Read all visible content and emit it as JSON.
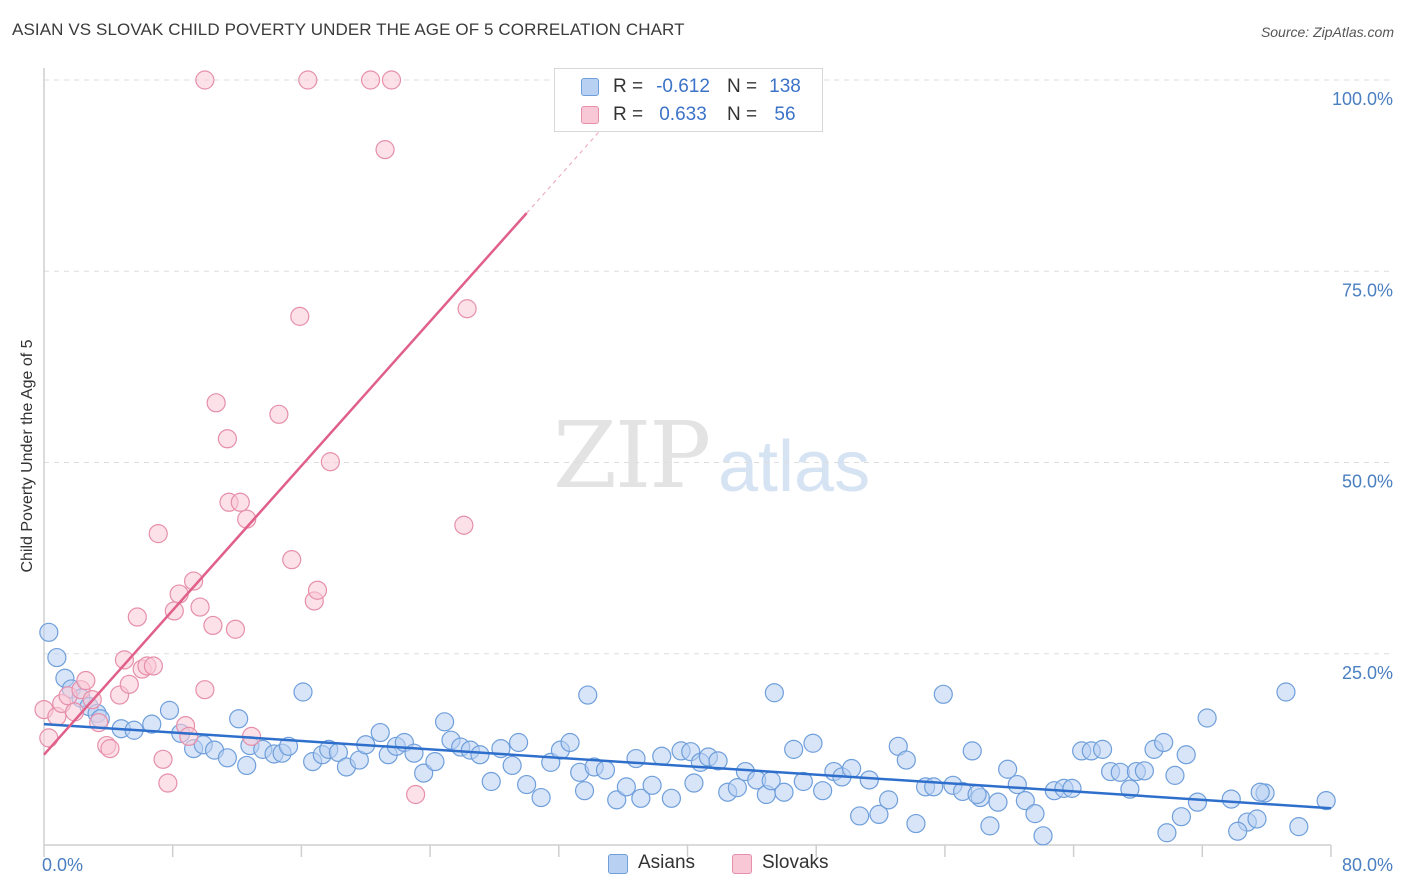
{
  "title": "ASIAN VS SLOVAK CHILD POVERTY UNDER THE AGE OF 5 CORRELATION CHART",
  "source": "Source: ZipAtlas.com",
  "watermark": {
    "zip": "ZIP",
    "atlas": "atlas"
  },
  "colors": {
    "asian_fill": "#b8d0f2",
    "asian_stroke": "#6f9fdb",
    "asian_line": "#2f6fcc",
    "slovak_fill": "#f9c8d6",
    "slovak_stroke": "#e68fab",
    "slovak_line": "#e0608a",
    "axis_text": "#4a7fc1",
    "grid": "#dddddd"
  },
  "legend": {
    "rows": [
      {
        "r_label": "R =",
        "r_value": "-0.612",
        "n_label": "N =",
        "n_value": "138"
      },
      {
        "r_label": "R =",
        "r_value": "0.633",
        "n_label": "N =",
        "n_value": "56"
      }
    ]
  },
  "bottom_legend": {
    "asians": "Asians",
    "slovaks": "Slovaks"
  },
  "chart_data": {
    "type": "scatter",
    "title": "ASIAN VS SLOVAK CHILD POVERTY UNDER THE AGE OF 5 CORRELATION CHART",
    "ylabel": "Child Poverty Under the Age of 5",
    "xlabel": "",
    "xlim": [
      0,
      80
    ],
    "ylim": [
      0,
      100
    ],
    "x_tick_labels": [
      "0.0%",
      "80.0%"
    ],
    "y_ticks": [
      25,
      50,
      75,
      100
    ],
    "y_tick_labels": [
      "25.0%",
      "50.0%",
      "75.0%",
      "100.0%"
    ],
    "grid": true,
    "legend_position": "top-center",
    "series": [
      {
        "name": "Asians",
        "trend": {
          "x": [
            0,
            80
          ],
          "y": [
            15.8,
            4.8
          ],
          "R": -0.612,
          "N": 138
        },
        "points": [
          [
            0.3,
            27.8
          ],
          [
            0.8,
            24.5
          ],
          [
            1.3,
            21.8
          ],
          [
            1.7,
            20.4
          ],
          [
            2.3,
            19.2
          ],
          [
            2.8,
            18.1
          ],
          [
            3.3,
            17.2
          ],
          [
            3.5,
            16.5
          ],
          [
            4.8,
            15.2
          ],
          [
            5.6,
            15.0
          ],
          [
            6.7,
            15.8
          ],
          [
            7.8,
            17.6
          ],
          [
            8.5,
            14.6
          ],
          [
            9.3,
            12.6
          ],
          [
            9.9,
            13.1
          ],
          [
            10.6,
            12.4
          ],
          [
            11.4,
            11.4
          ],
          [
            12.1,
            16.5
          ],
          [
            12.6,
            10.4
          ],
          [
            12.8,
            13.0
          ],
          [
            13.6,
            12.5
          ],
          [
            14.3,
            11.9
          ],
          [
            14.8,
            12.0
          ],
          [
            15.2,
            12.9
          ],
          [
            16.1,
            20.0
          ],
          [
            16.7,
            10.9
          ],
          [
            17.3,
            11.8
          ],
          [
            17.7,
            12.5
          ],
          [
            18.3,
            12.1
          ],
          [
            18.8,
            10.2
          ],
          [
            19.6,
            11.1
          ],
          [
            20.0,
            13.1
          ],
          [
            20.9,
            14.7
          ],
          [
            21.4,
            11.8
          ],
          [
            21.9,
            12.9
          ],
          [
            22.4,
            13.4
          ],
          [
            23.0,
            12.0
          ],
          [
            23.6,
            9.4
          ],
          [
            24.3,
            10.9
          ],
          [
            24.9,
            16.1
          ],
          [
            25.3,
            13.7
          ],
          [
            25.9,
            12.8
          ],
          [
            26.5,
            12.4
          ],
          [
            27.1,
            11.8
          ],
          [
            27.8,
            8.3
          ],
          [
            28.4,
            12.6
          ],
          [
            29.1,
            10.4
          ],
          [
            29.5,
            13.4
          ],
          [
            30.0,
            7.9
          ],
          [
            30.9,
            6.2
          ],
          [
            31.5,
            10.8
          ],
          [
            32.1,
            12.4
          ],
          [
            32.7,
            13.4
          ],
          [
            33.3,
            9.5
          ],
          [
            33.8,
            19.6
          ],
          [
            34.2,
            10.2
          ],
          [
            34.9,
            9.8
          ],
          [
            35.6,
            5.9
          ],
          [
            36.2,
            7.6
          ],
          [
            36.8,
            11.3
          ],
          [
            37.1,
            6.1
          ],
          [
            37.8,
            7.8
          ],
          [
            38.4,
            11.6
          ],
          [
            39.0,
            6.1
          ],
          [
            39.6,
            12.3
          ],
          [
            40.2,
            12.2
          ],
          [
            40.8,
            10.8
          ],
          [
            41.3,
            11.5
          ],
          [
            41.9,
            11.0
          ],
          [
            42.5,
            6.9
          ],
          [
            43.1,
            7.5
          ],
          [
            43.6,
            9.6
          ],
          [
            44.3,
            8.5
          ],
          [
            44.9,
            6.6
          ],
          [
            45.4,
            19.9
          ],
          [
            46.0,
            6.9
          ],
          [
            46.6,
            12.5
          ],
          [
            47.2,
            8.3
          ],
          [
            47.8,
            13.3
          ],
          [
            48.4,
            7.1
          ],
          [
            49.1,
            9.6
          ],
          [
            49.6,
            8.9
          ],
          [
            50.2,
            10.0
          ],
          [
            50.7,
            3.8
          ],
          [
            51.3,
            8.5
          ],
          [
            51.9,
            4.0
          ],
          [
            52.5,
            5.9
          ],
          [
            53.1,
            12.9
          ],
          [
            53.6,
            11.1
          ],
          [
            54.2,
            2.8
          ],
          [
            54.8,
            7.6
          ],
          [
            55.3,
            7.6
          ],
          [
            55.9,
            19.7
          ],
          [
            56.5,
            7.8
          ],
          [
            57.1,
            7.0
          ],
          [
            57.7,
            12.3
          ],
          [
            58.2,
            6.2
          ],
          [
            58.8,
            2.5
          ],
          [
            59.3,
            5.6
          ],
          [
            59.9,
            9.9
          ],
          [
            60.5,
            7.9
          ],
          [
            61.0,
            5.8
          ],
          [
            61.6,
            4.1
          ],
          [
            62.1,
            1.2
          ],
          [
            62.8,
            7.1
          ],
          [
            63.4,
            7.4
          ],
          [
            63.9,
            7.4
          ],
          [
            64.5,
            12.3
          ],
          [
            65.1,
            12.3
          ],
          [
            65.8,
            12.5
          ],
          [
            66.3,
            9.6
          ],
          [
            66.9,
            9.5
          ],
          [
            67.5,
            7.3
          ],
          [
            67.9,
            9.6
          ],
          [
            68.4,
            9.7
          ],
          [
            69.0,
            12.5
          ],
          [
            69.6,
            13.4
          ],
          [
            70.3,
            9.1
          ],
          [
            71.0,
            11.8
          ],
          [
            71.7,
            5.6
          ],
          [
            72.3,
            16.6
          ],
          [
            73.8,
            6.0
          ],
          [
            74.8,
            3.0
          ],
          [
            75.4,
            3.4
          ],
          [
            75.9,
            6.8
          ],
          [
            69.8,
            1.6
          ],
          [
            70.7,
            3.7
          ],
          [
            74.2,
            1.8
          ],
          [
            75.6,
            6.9
          ],
          [
            77.2,
            20.0
          ],
          [
            78.0,
            2.4
          ],
          [
            79.7,
            5.8
          ],
          [
            58.0,
            6.6
          ],
          [
            45.2,
            8.4
          ],
          [
            40.4,
            8.1
          ],
          [
            33.6,
            7.1
          ]
        ]
      },
      {
        "name": "Slovaks",
        "trend": {
          "x": [
            0,
            30
          ],
          "y": [
            11.8,
            82.6
          ],
          "R": 0.633,
          "N": 56
        },
        "points": [
          [
            0.0,
            17.7
          ],
          [
            0.3,
            14.0
          ],
          [
            0.8,
            16.8
          ],
          [
            1.1,
            18.5
          ],
          [
            1.5,
            19.5
          ],
          [
            1.9,
            17.4
          ],
          [
            2.3,
            20.3
          ],
          [
            2.6,
            21.5
          ],
          [
            3.0,
            19.0
          ],
          [
            3.4,
            16.0
          ],
          [
            3.9,
            13.0
          ],
          [
            4.1,
            12.6
          ],
          [
            4.7,
            19.6
          ],
          [
            5.0,
            24.2
          ],
          [
            5.3,
            21.0
          ],
          [
            5.8,
            29.8
          ],
          [
            6.1,
            23.0
          ],
          [
            6.4,
            23.4
          ],
          [
            6.8,
            23.4
          ],
          [
            7.1,
            40.7
          ],
          [
            7.4,
            11.2
          ],
          [
            7.7,
            8.1
          ],
          [
            8.1,
            30.6
          ],
          [
            8.4,
            32.8
          ],
          [
            8.8,
            15.6
          ],
          [
            9.0,
            14.2
          ],
          [
            9.3,
            34.5
          ],
          [
            9.7,
            31.1
          ],
          [
            10.0,
            20.3
          ],
          [
            10.5,
            28.7
          ],
          [
            10.7,
            57.8
          ],
          [
            11.4,
            53.1
          ],
          [
            11.5,
            44.8
          ],
          [
            11.9,
            28.2
          ],
          [
            12.2,
            44.8
          ],
          [
            12.6,
            42.6
          ],
          [
            12.9,
            14.2
          ],
          [
            14.6,
            56.3
          ],
          [
            15.4,
            37.3
          ],
          [
            15.9,
            69.1
          ],
          [
            16.8,
            31.9
          ],
          [
            17.0,
            33.3
          ],
          [
            17.8,
            50.1
          ],
          [
            10.0,
            100.0
          ],
          [
            16.4,
            100.0
          ],
          [
            20.3,
            100.0
          ],
          [
            21.6,
            100.0
          ],
          [
            21.2,
            90.9
          ],
          [
            26.3,
            70.1
          ],
          [
            23.1,
            6.6
          ],
          [
            26.1,
            41.8
          ]
        ]
      }
    ]
  }
}
